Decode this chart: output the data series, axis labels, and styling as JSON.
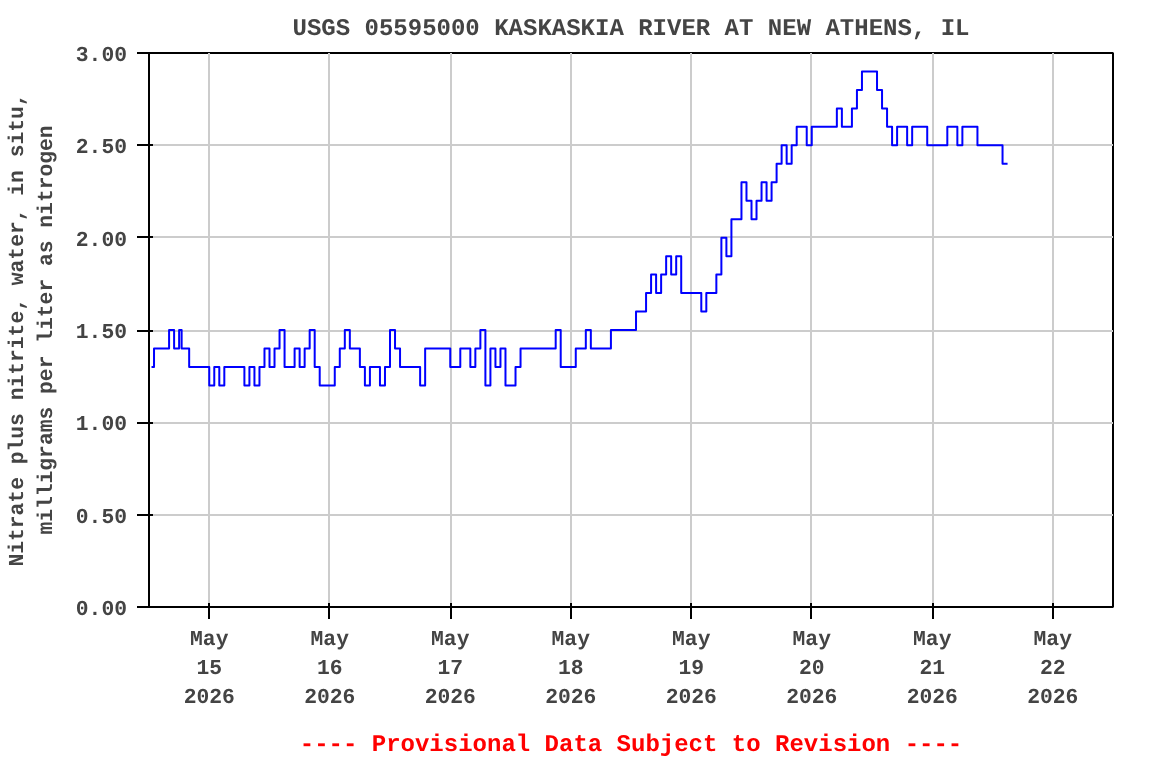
{
  "chart_data": {
    "type": "step",
    "title": "USGS 05595000 KASKASKIA RIVER AT NEW ATHENS, IL",
    "ylabel": "Nitrate plus nitrite, water, in situ,\nmilligrams per liter as nitrogen",
    "annotations": [
      "---- Provisional Data Subject to Revision ----"
    ],
    "xlim": [
      "2026-05-14T12:00",
      "2026-05-22T12:00"
    ],
    "xticks": [
      {
        "value": "2026-05-15",
        "label": "May\n15\n2026"
      },
      {
        "value": "2026-05-16",
        "label": "May\n16\n2026"
      },
      {
        "value": "2026-05-17",
        "label": "May\n17\n2026"
      },
      {
        "value": "2026-05-18",
        "label": "May\n18\n2026"
      },
      {
        "value": "2026-05-19",
        "label": "May\n19\n2026"
      },
      {
        "value": "2026-05-20",
        "label": "May\n20\n2026"
      },
      {
        "value": "2026-05-21",
        "label": "May\n21\n2026"
      },
      {
        "value": "2026-05-22",
        "label": "May\n22\n2026"
      }
    ],
    "ylim": [
      0,
      3
    ],
    "yticks": [
      {
        "value": 0,
        "label": "0.00"
      },
      {
        "value": 0.5,
        "label": "0.50"
      },
      {
        "value": 1,
        "label": "1.00"
      },
      {
        "value": 1.5,
        "label": "1.50"
      },
      {
        "value": 2,
        "label": "2.00"
      },
      {
        "value": 2.5,
        "label": "2.50"
      },
      {
        "value": 3,
        "label": "3.00"
      }
    ],
    "grid": true,
    "series": [
      {
        "color": "#0000ff",
        "x": [
          "2026-05-14T12:30",
          "2026-05-14T13:00",
          "2026-05-14T16:00",
          "2026-05-14T17:00",
          "2026-05-14T18:00",
          "2026-05-14T18:30",
          "2026-05-14T20:00",
          "2026-05-14T22:00",
          "2026-05-15T00:00",
          "2026-05-15T01:00",
          "2026-05-15T02:00",
          "2026-05-15T03:00",
          "2026-05-15T06:00",
          "2026-05-15T07:00",
          "2026-05-15T08:00",
          "2026-05-15T09:00",
          "2026-05-15T10:00",
          "2026-05-15T11:00",
          "2026-05-15T12:00",
          "2026-05-15T13:00",
          "2026-05-15T14:00",
          "2026-05-15T15:00",
          "2026-05-15T17:00",
          "2026-05-15T18:00",
          "2026-05-15T19:00",
          "2026-05-15T20:00",
          "2026-05-15T21:00",
          "2026-05-15T22:00",
          "2026-05-16T00:00",
          "2026-05-16T01:00",
          "2026-05-16T02:00",
          "2026-05-16T03:00",
          "2026-05-16T04:00",
          "2026-05-16T06:00",
          "2026-05-16T07:00",
          "2026-05-16T08:00",
          "2026-05-16T10:00",
          "2026-05-16T11:00",
          "2026-05-16T12:00",
          "2026-05-16T13:00",
          "2026-05-16T14:00",
          "2026-05-16T16:00",
          "2026-05-16T18:00",
          "2026-05-16T19:00",
          "2026-05-17T00:00",
          "2026-05-17T02:00",
          "2026-05-17T04:00",
          "2026-05-17T05:00",
          "2026-05-17T06:00",
          "2026-05-17T07:00",
          "2026-05-17T08:00",
          "2026-05-17T09:00",
          "2026-05-17T10:00",
          "2026-05-17T11:00",
          "2026-05-17T13:00",
          "2026-05-17T14:00",
          "2026-05-17T20:00",
          "2026-05-17T21:00",
          "2026-05-17T22:00",
          "2026-05-18T01:00",
          "2026-05-18T03:00",
          "2026-05-18T04:00",
          "2026-05-18T06:00",
          "2026-05-18T08:00",
          "2026-05-18T12:00",
          "2026-05-18T13:00",
          "2026-05-18T15:00",
          "2026-05-18T16:00",
          "2026-05-18T17:00",
          "2026-05-18T18:00",
          "2026-05-18T19:00",
          "2026-05-18T20:00",
          "2026-05-18T21:00",
          "2026-05-18T22:00",
          "2026-05-19T02:00",
          "2026-05-19T03:00",
          "2026-05-19T04:00",
          "2026-05-19T05:00",
          "2026-05-19T06:00",
          "2026-05-19T07:00",
          "2026-05-19T08:00",
          "2026-05-19T10:00",
          "2026-05-19T11:00",
          "2026-05-19T12:00",
          "2026-05-19T13:00",
          "2026-05-19T14:00",
          "2026-05-19T15:00",
          "2026-05-19T16:00",
          "2026-05-19T17:00",
          "2026-05-19T18:00",
          "2026-05-19T19:00",
          "2026-05-19T20:00",
          "2026-05-19T21:00",
          "2026-05-19T23:00",
          "2026-05-20T00:00",
          "2026-05-20T01:00",
          "2026-05-20T05:00",
          "2026-05-20T06:00",
          "2026-05-20T07:00",
          "2026-05-20T08:00",
          "2026-05-20T09:00",
          "2026-05-20T10:00",
          "2026-05-20T13:00",
          "2026-05-20T14:00",
          "2026-05-20T15:00",
          "2026-05-20T16:00",
          "2026-05-20T17:00",
          "2026-05-20T19:00",
          "2026-05-20T20:00",
          "2026-05-20T23:00",
          "2026-05-21T02:00",
          "2026-05-21T03:00",
          "2026-05-21T05:00",
          "2026-05-21T06:00",
          "2026-05-21T08:00",
          "2026-05-21T09:00",
          "2026-05-21T13:00",
          "2026-05-21T14:00",
          "2026-05-21T15:00"
        ],
        "values": [
          1.3,
          1.4,
          1.5,
          1.4,
          1.5,
          1.4,
          1.3,
          1.3,
          1.2,
          1.3,
          1.2,
          1.3,
          1.3,
          1.2,
          1.3,
          1.2,
          1.3,
          1.4,
          1.3,
          1.4,
          1.5,
          1.3,
          1.4,
          1.3,
          1.4,
          1.5,
          1.3,
          1.2,
          1.2,
          1.3,
          1.4,
          1.5,
          1.4,
          1.3,
          1.2,
          1.3,
          1.2,
          1.3,
          1.5,
          1.4,
          1.3,
          1.3,
          1.2,
          1.4,
          1.3,
          1.4,
          1.3,
          1.4,
          1.5,
          1.2,
          1.4,
          1.3,
          1.4,
          1.2,
          1.3,
          1.4,
          1.4,
          1.5,
          1.3,
          1.4,
          1.5,
          1.4,
          1.4,
          1.5,
          1.5,
          1.6,
          1.7,
          1.8,
          1.7,
          1.8,
          1.9,
          1.8,
          1.9,
          1.7,
          1.6,
          1.7,
          1.7,
          1.8,
          2.0,
          1.9,
          2.1,
          2.3,
          2.2,
          2.1,
          2.2,
          2.3,
          2.2,
          2.3,
          2.4,
          2.5,
          2.4,
          2.5,
          2.6,
          2.5,
          2.6,
          2.6,
          2.7,
          2.6,
          2.6,
          2.7,
          2.8,
          2.9,
          2.8,
          2.7,
          2.6,
          2.5,
          2.6,
          2.5,
          2.6,
          2.5,
          2.5,
          2.6,
          2.5,
          2.6,
          2.6,
          2.5,
          2.5,
          2.4,
          2.4
        ]
      }
    ]
  }
}
